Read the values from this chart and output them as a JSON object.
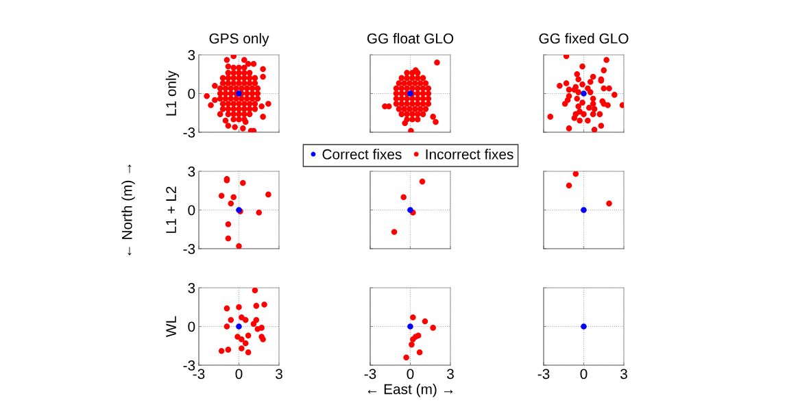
{
  "chart_data": [
    {
      "type": "scatter",
      "title": "GPS only",
      "ylabel": "L1 only",
      "xlim": [
        -3,
        3
      ],
      "ylim": [
        -3,
        3
      ],
      "xticks": [
        -3,
        0,
        3
      ],
      "yticks": [
        -3,
        0,
        3
      ],
      "tick_labels": "y",
      "grid": true,
      "marker": "circle",
      "legend": "bottom",
      "series": [
        {
          "name": "Incorrect fixes",
          "color": "#ff0000",
          "x": [
            -0.4,
            0,
            0.4,
            -0.4,
            0,
            0.4,
            -0.8,
            -0.4,
            0,
            0.4,
            0.8,
            -0.8,
            -0.4,
            0,
            0.4,
            0.8,
            -1.2,
            -0.8,
            -0.4,
            0,
            0.4,
            0.8,
            1.2,
            -1.2,
            -0.8,
            -0.4,
            0,
            0.4,
            0.8,
            1.2,
            -1.2,
            -0.8,
            -0.4,
            0,
            0.4,
            0.8,
            1.2,
            -1.2,
            -0.8,
            -0.4,
            0,
            0.4,
            0.8,
            1.2,
            -1.4,
            -1.0,
            -0.6,
            -0.2,
            0.2,
            0.6,
            1.0,
            1.4,
            -1.4,
            -1.0,
            -0.6,
            -0.2,
            0.2,
            0.6,
            1.0,
            1.4,
            -1.4,
            -1.0,
            -0.6,
            -0.2,
            0.2,
            0.6,
            1.0,
            1.4,
            -0.4,
            -0.9,
            0.4,
            0.7,
            1.1,
            -0.8,
            1.8,
            1.8,
            -1.8,
            -2.4,
            -1.8,
            -2.1,
            2.2,
            1.7,
            1.8,
            -1.4,
            -1.0,
            -0.8,
            -0.3,
            0.3,
            0.9,
            1.1,
            0.5
          ],
          "values": [
            2.0,
            2.0,
            2.0,
            -2.0,
            -2.0,
            -2.0,
            1.6,
            1.6,
            1.6,
            1.6,
            1.6,
            -1.6,
            -1.6,
            -1.6,
            -1.6,
            -1.6,
            1.2,
            1.2,
            1.2,
            1.2,
            1.2,
            1.2,
            1.2,
            -1.2,
            -1.2,
            -1.2,
            -1.2,
            -1.2,
            -1.2,
            -1.2,
            0.8,
            0.8,
            0.8,
            0.8,
            0.8,
            0.8,
            0.8,
            -0.8,
            -0.8,
            -0.8,
            -0.8,
            -0.8,
            -0.8,
            -0.8,
            0.4,
            0.4,
            0.4,
            0.4,
            0.4,
            0.4,
            0.4,
            0.4,
            -0.4,
            -0.4,
            -0.4,
            -0.4,
            -0.4,
            -0.4,
            -0.4,
            -0.4,
            0,
            0,
            0,
            0,
            0,
            0,
            0,
            0,
            2.9,
            2.6,
            2.6,
            2.3,
            2.3,
            2.1,
            1.9,
            1.3,
            0.6,
            -0.2,
            -0.5,
            -0.9,
            -0.8,
            -1.0,
            -1.8,
            -1.6,
            -2.1,
            -2.5,
            -2.6,
            -2.7,
            -2.9,
            -2.9,
            -2.2
          ]
        },
        {
          "name": "Correct fixes",
          "color": "#0000ff",
          "x": [
            0
          ],
          "values": [
            0
          ]
        }
      ]
    },
    {
      "type": "scatter",
      "title": "GG float GLO",
      "xlim": [
        -3,
        3
      ],
      "ylim": [
        -3,
        3
      ],
      "xticks": [
        -3,
        0,
        3
      ],
      "yticks": [
        -3,
        0,
        3
      ],
      "tick_labels": false,
      "grid": true,
      "marker": "circle",
      "series": [
        {
          "color": "#ff0000",
          "x": [
            -0.25,
            0.15,
            0.55,
            -0.65,
            -0.25,
            0.15,
            0.55,
            0.95,
            -0.85,
            -0.45,
            -0.05,
            0.35,
            0.75,
            1.15,
            -1.05,
            -0.65,
            -0.25,
            0.15,
            0.55,
            0.95,
            1.35,
            -1.05,
            -0.65,
            -0.25,
            0.15,
            0.55,
            0.95,
            1.35,
            -1.05,
            -0.65,
            -0.25,
            0.15,
            0.55,
            0.95,
            1.35,
            -1.05,
            -0.65,
            -0.25,
            0.15,
            0.55,
            0.95,
            1.35,
            -0.85,
            -0.45,
            -0.05,
            0.35,
            0.75,
            1.15,
            -0.65,
            -0.25,
            0.15,
            0.55,
            0.95,
            -0.25,
            0.15,
            0.55,
            2.0,
            -1.9,
            -1.6,
            0.05,
            1.9,
            1.7,
            -0.4,
            0.4
          ],
          "values": [
            1.6,
            1.6,
            1.6,
            1.2,
            1.2,
            1.2,
            1.2,
            1.2,
            0.8,
            0.8,
            0.8,
            0.8,
            0.8,
            0.8,
            0.4,
            0.4,
            0.4,
            0.4,
            0.4,
            0.4,
            0.4,
            0,
            0,
            0,
            0,
            0,
            0,
            0,
            -0.4,
            -0.4,
            -0.4,
            -0.4,
            -0.4,
            -0.4,
            -0.4,
            -0.8,
            -0.8,
            -0.8,
            -0.8,
            -0.8,
            -0.8,
            -0.8,
            -1.2,
            -1.2,
            -1.2,
            -1.2,
            -1.2,
            -1.2,
            -1.6,
            -1.6,
            -1.6,
            -1.6,
            -1.6,
            -2.0,
            -2.0,
            -2.0,
            2.4,
            -1.0,
            -1.0,
            -2.9,
            -2.2,
            -1.8,
            -2.3,
            1.8
          ]
        },
        {
          "color": "#0000ff",
          "x": [
            0
          ],
          "values": [
            0
          ]
        }
      ]
    },
    {
      "type": "scatter",
      "title": "GG fixed GLO",
      "xlim": [
        -3,
        3
      ],
      "ylim": [
        -3,
        3
      ],
      "xticks": [
        -3,
        0,
        3
      ],
      "yticks": [
        -3,
        0,
        3
      ],
      "tick_labels": false,
      "grid": true,
      "marker": "circle",
      "series": [
        {
          "color": "#ff0000",
          "x": [
            -1.3,
            1.7,
            -0.1,
            1.5,
            -0.5,
            0.7,
            -0.4,
            1.3,
            1.3,
            -1.3,
            0.5,
            -0.1,
            -1.8,
            -0.6,
            -1.1,
            -0.7,
            0.3,
            1.5,
            1.9,
            -0.4,
            0.5,
            2.3,
            -1.1,
            0.7,
            -0.5,
            -1.2,
            -0.1,
            1.4,
            -1.4,
            0.7,
            1.5,
            1.8,
            2.9,
            -0.4,
            0.4,
            0.8,
            -0.3,
            -0.6,
            0.0,
            0.7,
            1.2,
            -2.5,
            -0.7,
            -0.3,
            0.3,
            1.3,
            -1.1,
            0.8
          ],
          "values": [
            2.9,
            2.6,
            2.1,
            1.8,
            1.5,
            1.3,
            1.1,
            1.1,
            1.0,
            0.8,
            0.9,
            0.7,
            0.6,
            0.5,
            0.3,
            0.3,
            0.4,
            0.4,
            0.4,
            0.1,
            0.1,
            -0.1,
            -0.2,
            -0.4,
            -0.4,
            -0.5,
            -0.7,
            -0.6,
            -0.8,
            -0.8,
            -0.8,
            -0.9,
            -0.9,
            -1.0,
            -1.1,
            -1.2,
            -1.4,
            -1.6,
            -1.6,
            -1.6,
            -1.6,
            -1.8,
            -1.9,
            -2.1,
            -2.1,
            -2.5,
            -2.7,
            -2.8
          ]
        },
        {
          "color": "#0000ff",
          "x": [
            0
          ],
          "values": [
            0
          ]
        }
      ]
    },
    {
      "type": "scatter",
      "ylabel": "L1 + L2",
      "annotations": [
        "← North (m) →"
      ],
      "xlim": [
        -3,
        3
      ],
      "ylim": [
        -3,
        3
      ],
      "xticks": [
        -3,
        0,
        3
      ],
      "yticks": [
        -3,
        0,
        3
      ],
      "tick_labels": "y",
      "grid": true,
      "marker": "circle",
      "series": [
        {
          "color": "#ff0000",
          "x": [
            -0.9,
            -0.9,
            0.3,
            -1.3,
            -0.4,
            2.2,
            -0.6,
            0.1,
            1.5,
            -0.8,
            -0.8,
            0.0
          ],
          "values": [
            2.4,
            2.3,
            2.1,
            1.1,
            1.0,
            1.2,
            0.5,
            -0.1,
            -0.2,
            -1.1,
            -2.2,
            -2.8
          ]
        },
        {
          "color": "#0000ff",
          "x": [
            0
          ],
          "values": [
            0
          ]
        }
      ]
    },
    {
      "type": "scatter",
      "xlim": [
        -3,
        3
      ],
      "ylim": [
        -3,
        3
      ],
      "xticks": [
        -3,
        0,
        3
      ],
      "yticks": [
        -3,
        0,
        3
      ],
      "tick_labels": false,
      "grid": true,
      "marker": "circle",
      "series": [
        {
          "color": "#ff0000",
          "x": [
            0.9,
            -0.5,
            0.2,
            -1.2
          ],
          "values": [
            2.2,
            1.0,
            -0.2,
            -1.7
          ]
        },
        {
          "color": "#0000ff",
          "x": [
            0
          ],
          "values": [
            0
          ]
        }
      ]
    },
    {
      "type": "scatter",
      "xlim": [
        -3,
        3
      ],
      "ylim": [
        -3,
        3
      ],
      "xticks": [
        -3,
        0,
        3
      ],
      "yticks": [
        -3,
        0,
        3
      ],
      "tick_labels": false,
      "grid": true,
      "marker": "circle",
      "series": [
        {
          "color": "#ff0000",
          "x": [
            -0.6,
            -1.1,
            1.9
          ],
          "values": [
            2.8,
            1.9,
            0.5
          ]
        },
        {
          "color": "#0000ff",
          "x": [
            0
          ],
          "values": [
            0
          ]
        }
      ]
    },
    {
      "type": "scatter",
      "ylabel": "WL",
      "xlim": [
        -3,
        3
      ],
      "ylim": [
        -3,
        3
      ],
      "xticks": [
        -3,
        0,
        3
      ],
      "yticks": [
        -3,
        0,
        3
      ],
      "grid": true,
      "marker": "circle",
      "series": [
        {
          "color": "#ff0000",
          "x": [
            1.2,
            -0.9,
            0.0,
            1.3,
            1.9,
            -0.6,
            0.2,
            0.5,
            1.3,
            1.1,
            -0.9,
            1.4,
            1.7,
            -0.1,
            0.2,
            0.7,
            0.5,
            1.7,
            1.8,
            -1.3,
            -0.8,
            0.2,
            0.7
          ],
          "values": [
            2.8,
            1.4,
            1.5,
            1.6,
            1.7,
            0.5,
            0.7,
            0.5,
            0.5,
            0.2,
            0.0,
            -0.2,
            -0.1,
            -0.8,
            -1.0,
            -0.7,
            -1.3,
            -0.8,
            -1.0,
            -1.9,
            -1.8,
            -1.7,
            -2.0
          ]
        },
        {
          "color": "#0000ff",
          "x": [
            0
          ],
          "values": [
            0
          ]
        }
      ]
    },
    {
      "type": "scatter",
      "xlabel": "← East (m) →",
      "xlim": [
        -3,
        3
      ],
      "ylim": [
        -3,
        3
      ],
      "xticks": [
        -3,
        0,
        3
      ],
      "yticks": [
        -3,
        0,
        3
      ],
      "tick_labels": "x",
      "grid": true,
      "marker": "circle",
      "series": [
        {
          "color": "#ff0000",
          "x": [
            0.2,
            1.1,
            1.7,
            0.6,
            0.4,
            0.2,
            0.1,
            0.7,
            -0.3
          ],
          "values": [
            0.7,
            0.4,
            -0.1,
            -0.7,
            -0.8,
            -1.0,
            -1.4,
            -2.0,
            -2.4
          ]
        },
        {
          "color": "#0000ff",
          "x": [
            0
          ],
          "values": [
            0
          ]
        }
      ]
    },
    {
      "type": "scatter",
      "xlim": [
        -3,
        3
      ],
      "ylim": [
        -3,
        3
      ],
      "xticks": [
        -3,
        0,
        3
      ],
      "yticks": [
        -3,
        0,
        3
      ],
      "tick_labels": "x",
      "grid": true,
      "marker": "circle",
      "series": [
        {
          "color": "#0000ff",
          "x": [
            0
          ],
          "values": [
            0
          ]
        }
      ]
    }
  ]
}
